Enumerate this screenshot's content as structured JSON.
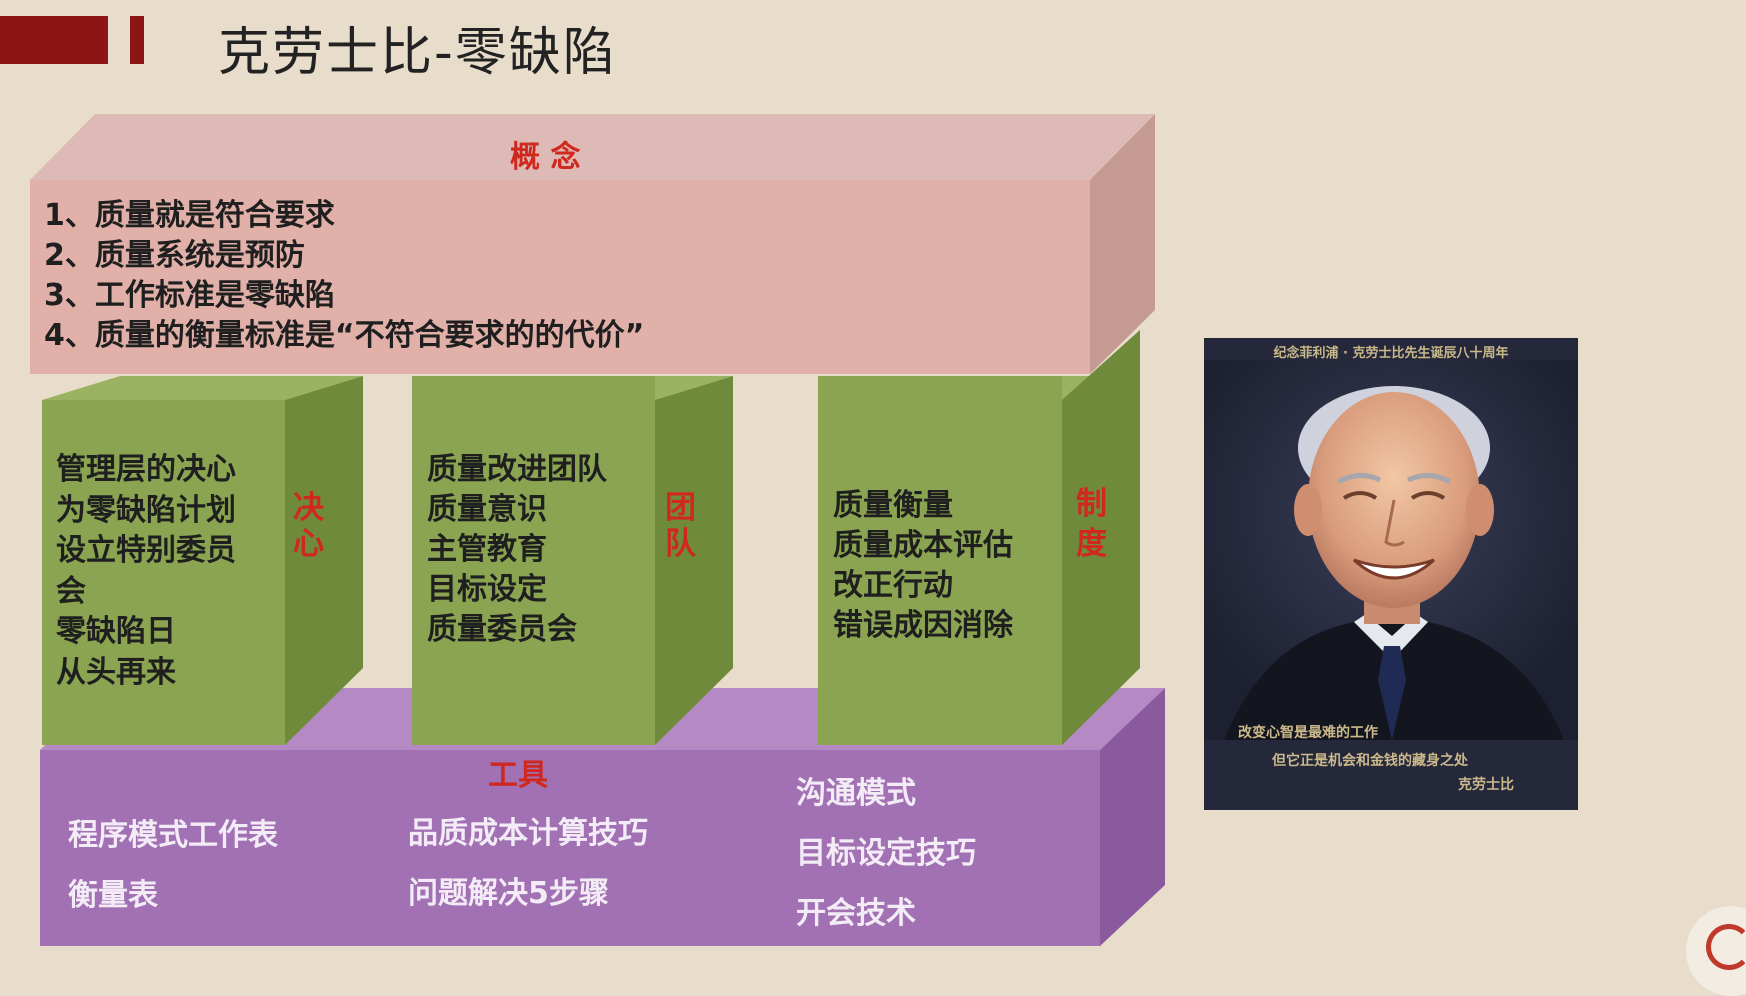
{
  "title": "克劳士比-零缺陷",
  "concept": {
    "heading": "概 念",
    "items": [
      "1、质量就是符合要求",
      "2、质量系统是预防",
      "3、工作标准是零缺陷",
      "4、质量的衡量标准是“不符合要求的的代价”"
    ]
  },
  "pillars": [
    {
      "label_1": "决",
      "label_2": "心",
      "items": [
        "管理层的决心",
        "为零缺陷计划",
        "设立特别委员",
        "会",
        "零缺陷日",
        "从头再来"
      ]
    },
    {
      "label_1": "团",
      "label_2": "队",
      "items": [
        "质量改进团队",
        "质量意识",
        "主管教育",
        "目标设定",
        "质量委员会"
      ]
    },
    {
      "label_1": "制",
      "label_2": "度",
      "items": [
        "质量衡量",
        "质量成本评估",
        "改正行动",
        "错误成因消除"
      ]
    }
  ],
  "tools": {
    "heading": "工具",
    "col1": [
      "程序模式工作表",
      "衡量表"
    ],
    "col2": [
      "品质成本计算技巧",
      "问题解决5步骤"
    ],
    "col3": [
      "沟通模式",
      "目标设定技巧",
      "开会技术"
    ]
  },
  "poster": {
    "top_text": "纪念菲利浦 · 克劳士比先生诞辰八十周年",
    "caption_1": "改变心智是最难的工作",
    "caption_2": "但它正是机会和金钱的藏身之处",
    "signature": "克劳士比"
  },
  "colors": {
    "accent_dark_red": "#8e1515",
    "pink_front": "#e0b0a9",
    "pink_top": "#ddbab5",
    "green_front": "#8ba451",
    "green_side": "#6f8a3a",
    "purple_front": "#a271b4",
    "purple_side": "#8a5a9e",
    "label_red": "#d0281e"
  }
}
